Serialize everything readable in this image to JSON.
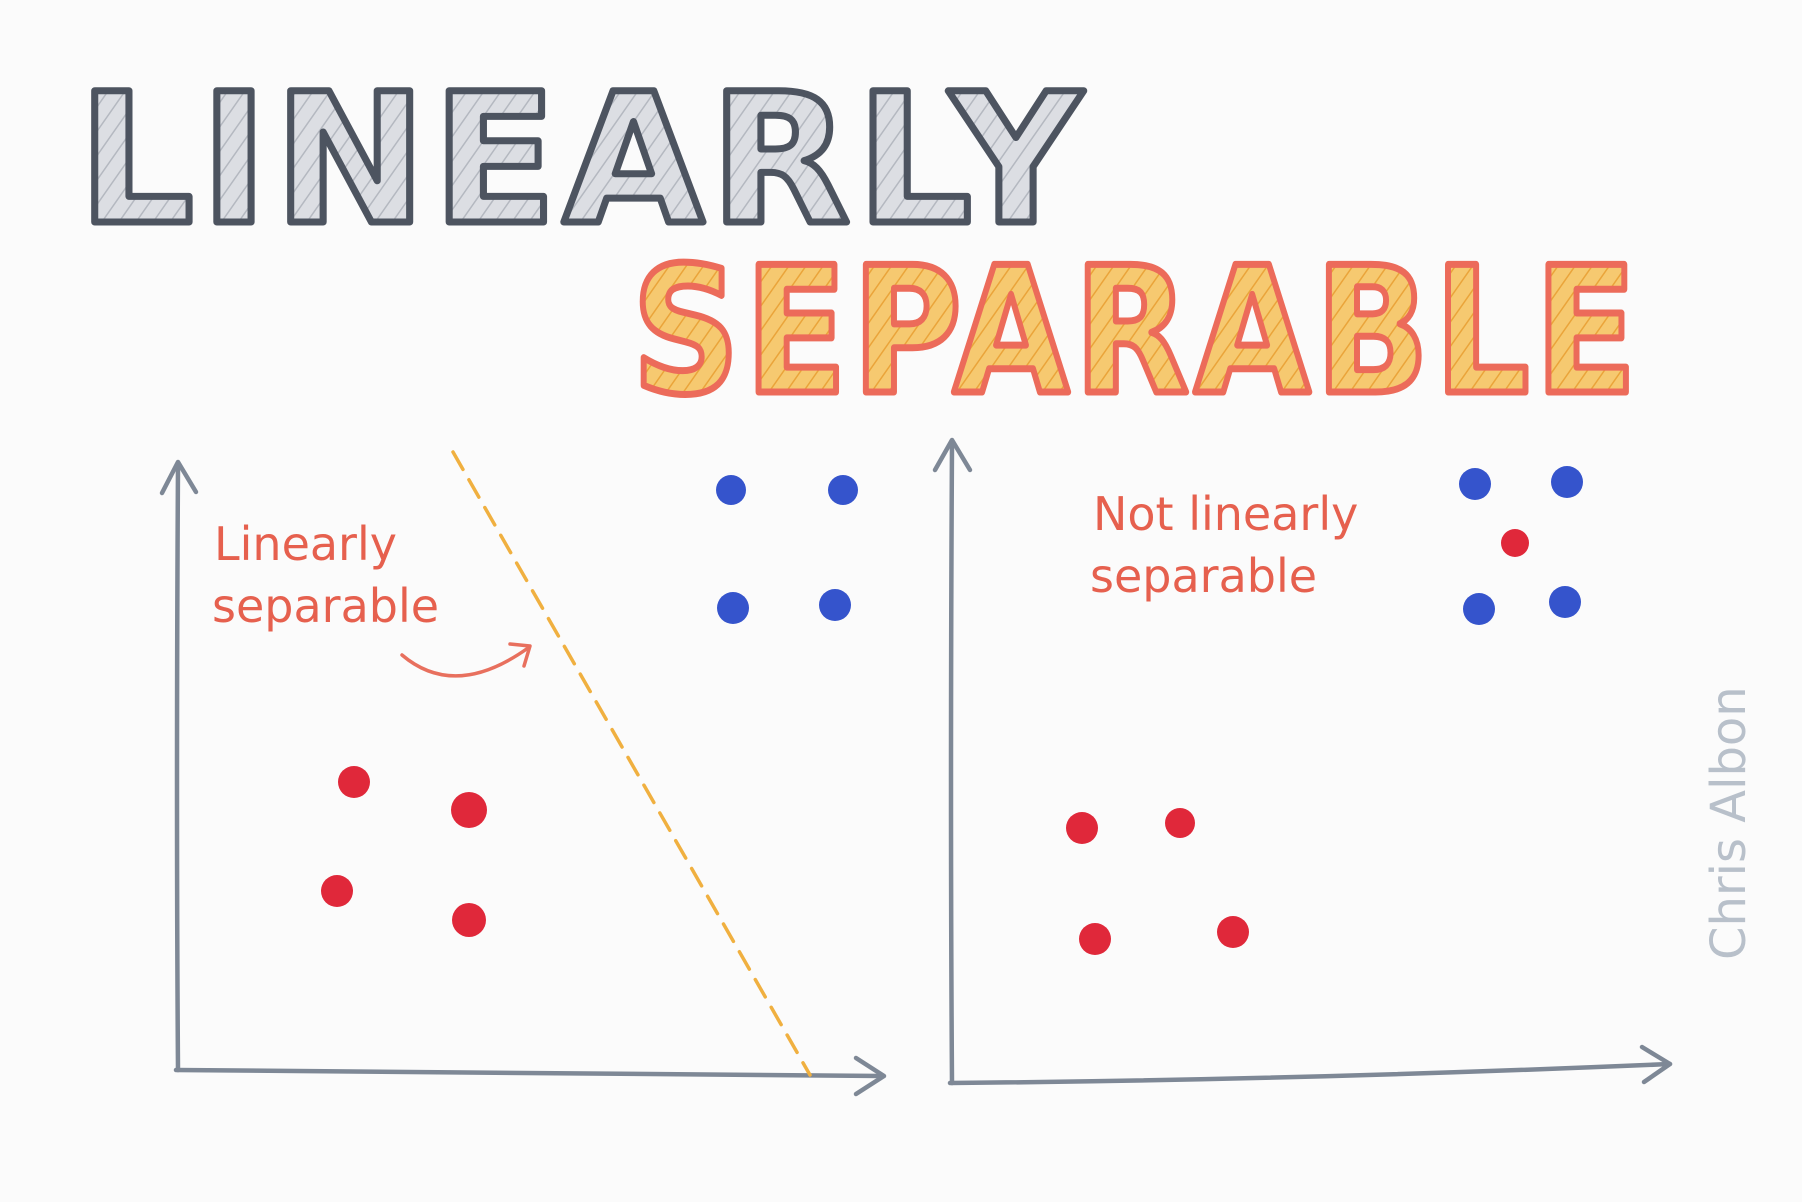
{
  "title": {
    "line1": "LINEARLY",
    "line2": "SEPARABLE"
  },
  "left_panel": {
    "label_line1": "Linearly",
    "label_line2": "separable",
    "blue_points": 4,
    "red_points": 4
  },
  "right_panel": {
    "label_line1": "Not linearly",
    "label_line2": "separable",
    "blue_points": 4,
    "red_points": 5
  },
  "signature": "Chris Albon",
  "colors": {
    "background": "#fbfbfb",
    "title1_fill": "#d4d6dc",
    "title1_stroke": "#4d5460",
    "title2_fill": "#f3b64c",
    "title2_stroke": "#ec6b5a",
    "axis": "#7e8896",
    "separator_line": "#f0b040",
    "label_text": "#e6604e",
    "arrow": "#e8705e",
    "red_point": "#e0283a",
    "blue_point": "#3554cc",
    "signature": "#b8c0ca"
  },
  "icons": {
    "arrow": "curved-arrow-icon"
  }
}
